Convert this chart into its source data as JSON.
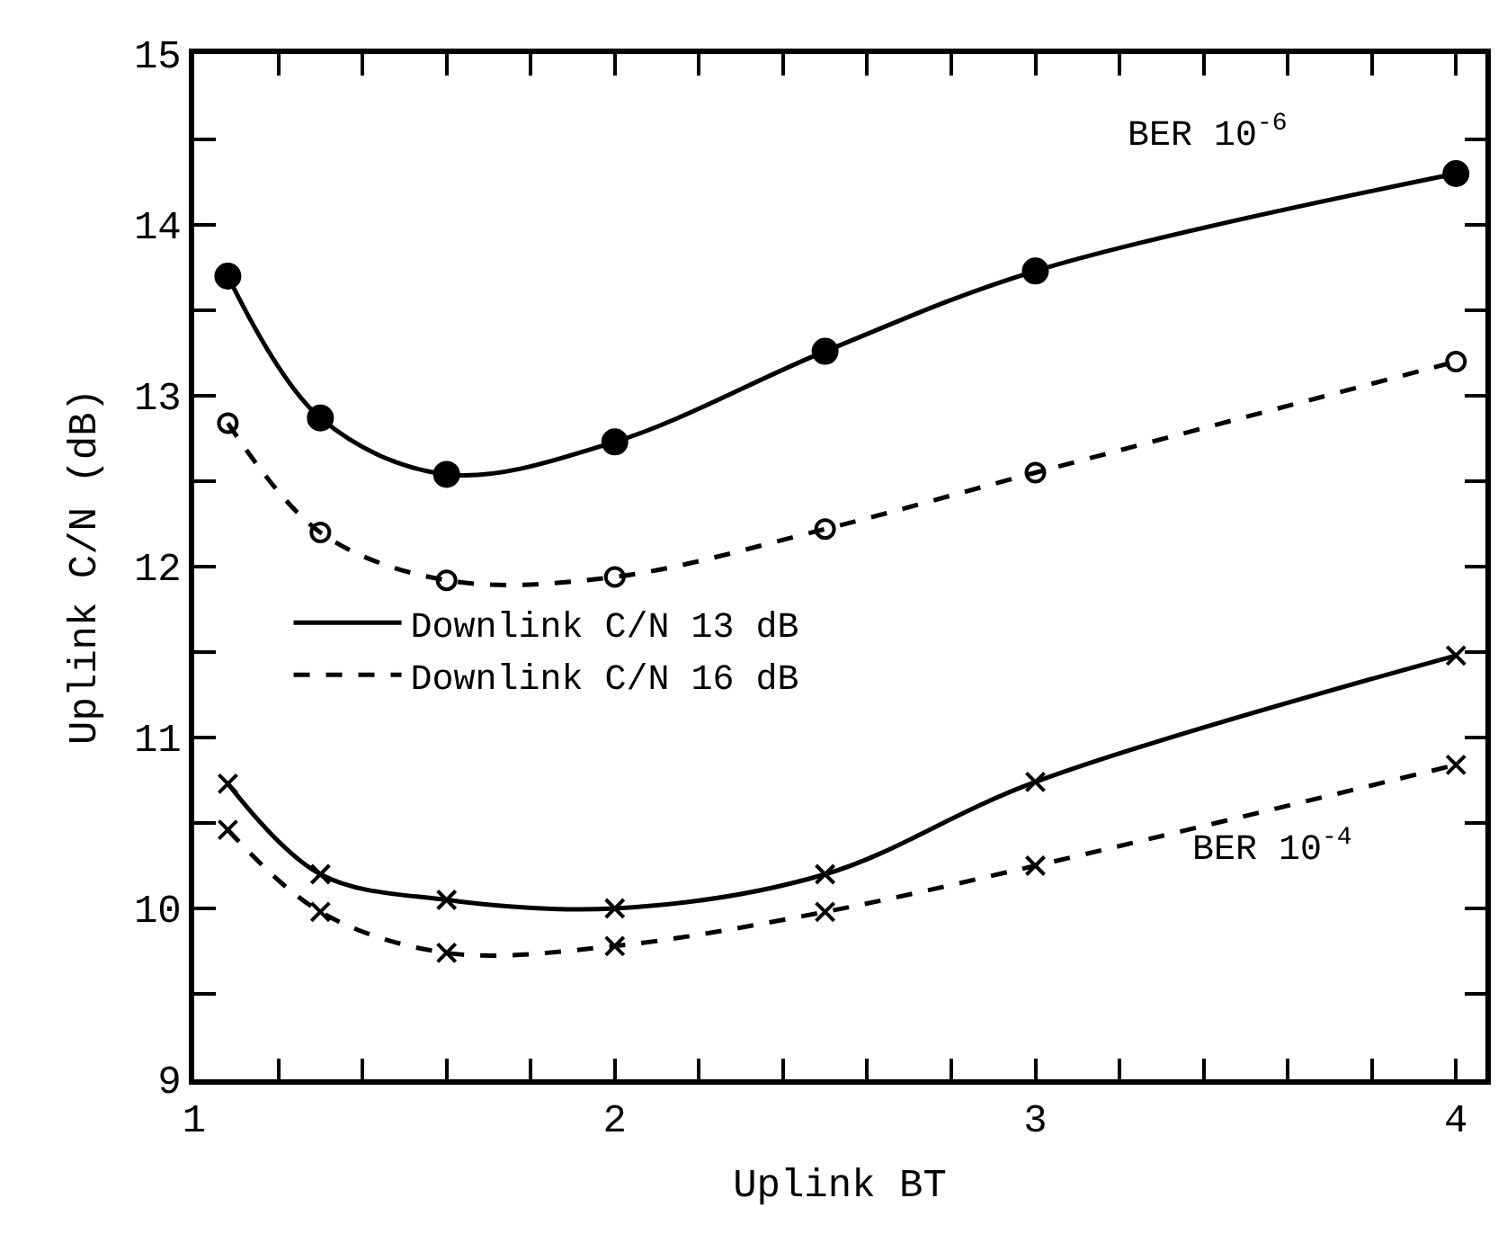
{
  "chart_data": {
    "type": "line",
    "xlabel": "Uplink BT",
    "ylabel": "Uplink C/N (dB)",
    "xlim": [
      1,
      4.07
    ],
    "ylim": [
      9,
      15
    ],
    "xticks": [
      1,
      {
        "value": 1.2,
        "label": null
      },
      {
        "value": 1.4,
        "label": null
      },
      {
        "value": 1.6,
        "label": null
      },
      {
        "value": 1.8,
        "label": null
      },
      2,
      {
        "value": 2.2,
        "label": null
      },
      {
        "value": 2.4,
        "label": null
      },
      {
        "value": 2.6,
        "label": null
      },
      {
        "value": 2.8,
        "label": null
      },
      3,
      {
        "value": 3.2,
        "label": null
      },
      {
        "value": 3.4,
        "label": null
      },
      {
        "value": 3.6,
        "label": null
      },
      {
        "value": 3.8,
        "label": null
      },
      4
    ],
    "yticks": [
      9,
      {
        "value": 9.5,
        "label": null
      },
      10,
      {
        "value": 10.5,
        "label": null
      },
      11,
      {
        "value": 11.5,
        "label": null
      },
      12,
      {
        "value": 12.5,
        "label": null
      },
      13,
      {
        "value": 13.5,
        "label": null
      },
      14,
      {
        "value": 14.5,
        "label": null
      },
      15
    ],
    "legend": "left",
    "series": [
      {
        "name": "Downlink C/N 13 dB",
        "color": "#000000",
        "line_style": "solid",
        "marker": "circle",
        "x": [
          1.08,
          1.3,
          1.6,
          2.0,
          2.5,
          3.0,
          4.0
        ],
        "values": [
          13.7,
          12.87,
          12.54,
          12.73,
          13.26,
          13.73,
          14.3
        ]
      },
      {
        "name": "Downlink C/N 16 dB",
        "color": "#000000",
        "line_style": "dashed",
        "marker": "circle",
        "x": [
          1.08,
          1.3,
          1.6,
          2.0,
          2.5,
          3.0,
          4.0
        ],
        "values": [
          12.84,
          12.2,
          11.92,
          11.94,
          12.22,
          12.55,
          13.2
        ]
      },
      {
        "color": "#000000",
        "line_style": "solid",
        "marker": "cross",
        "x": [
          1.08,
          1.3,
          1.6,
          2.0,
          2.5,
          3.0,
          4.0
        ],
        "values": [
          10.73,
          10.2,
          10.05,
          10.0,
          10.2,
          10.74,
          11.48
        ]
      },
      {
        "color": "#000000",
        "line_style": "dashed",
        "marker": "cross",
        "x": [
          1.08,
          1.3,
          1.6,
          2.0,
          2.5,
          3.0,
          4.0
        ],
        "values": [
          10.46,
          9.98,
          9.74,
          9.78,
          9.98,
          10.25,
          10.84
        ]
      }
    ],
    "annotations": [
      "BER 10$^{-6}$",
      "BER 10$^{-4}$"
    ]
  }
}
